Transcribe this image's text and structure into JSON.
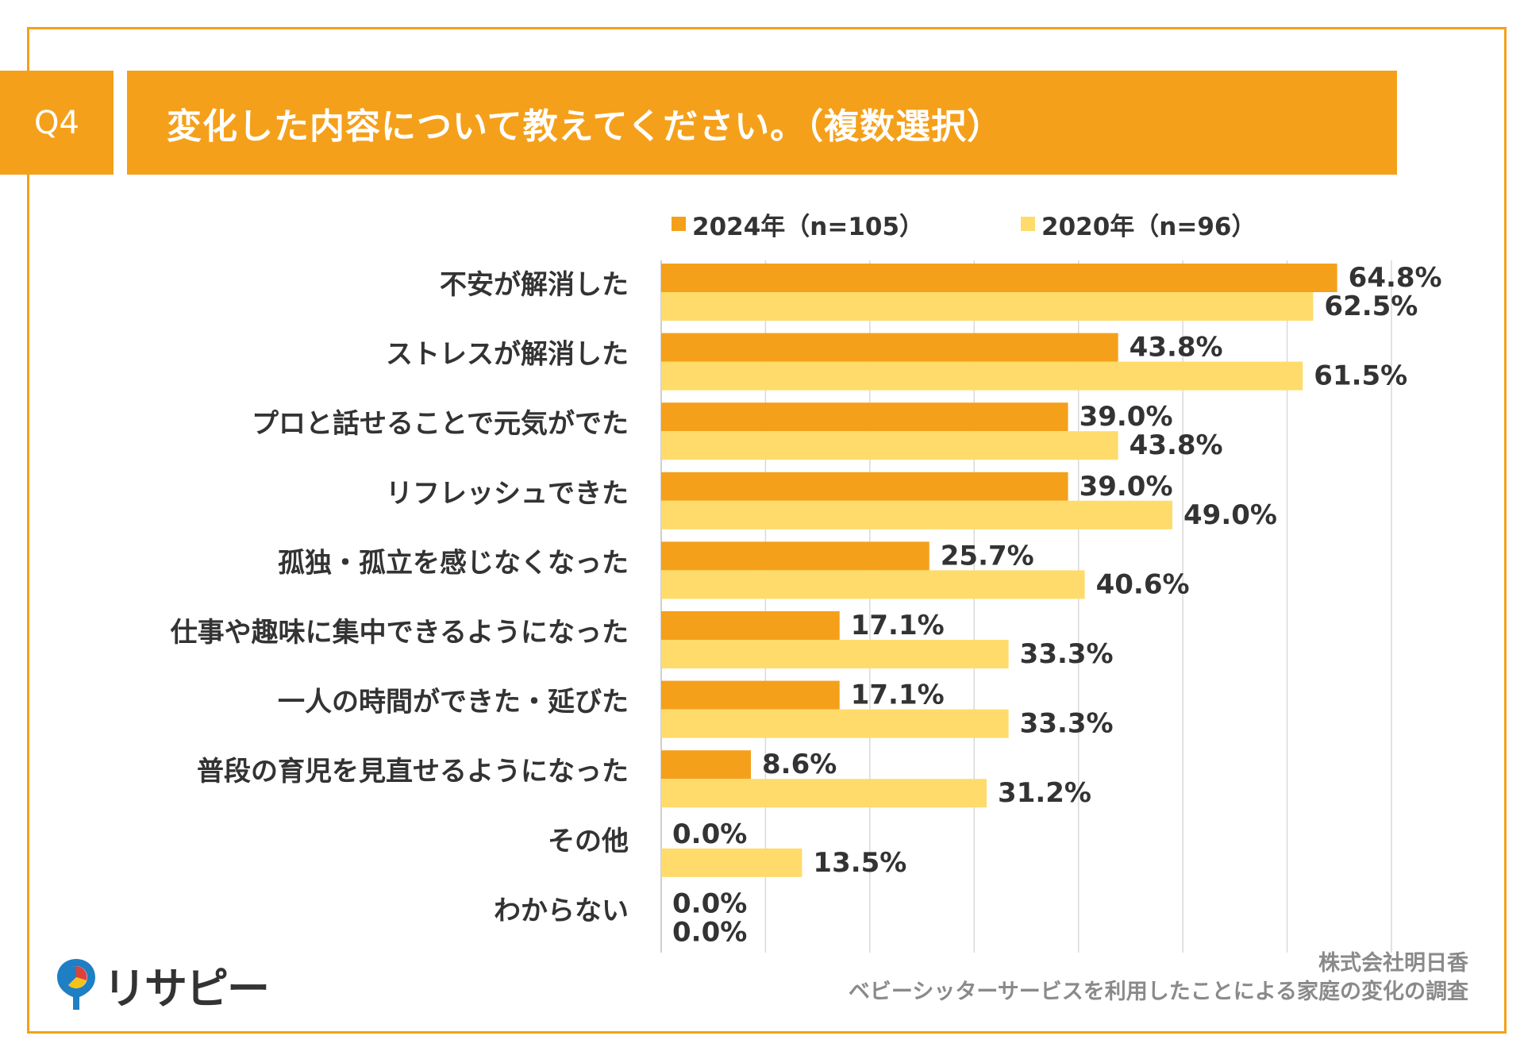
{
  "header": {
    "question_no": "Q4",
    "title": "変化した内容について教えてください。（複数選択）"
  },
  "colors": {
    "accent": "#F5A01A",
    "series_2024": "#F5A01A",
    "series_2020": "#FFDB6C",
    "grid": "#d9d9d9",
    "text": "#333333"
  },
  "chart_data": {
    "type": "bar",
    "orientation": "horizontal",
    "categories": [
      "不安が解消した",
      "ストレスが解消した",
      "プロと話せることで元気がでた",
      "リフレッシュできた",
      "孤独・孤立を感じなくなった",
      "仕事や趣味に集中できるようになった",
      "一人の時間ができた・延びた",
      "普段の育児を見直せるようになった",
      "その他",
      "わからない"
    ],
    "series": [
      {
        "name": "2024年（n=105）",
        "values": [
          64.8,
          43.8,
          39.0,
          39.0,
          25.7,
          17.1,
          17.1,
          8.6,
          0.0,
          0.0
        ],
        "labels": [
          "64.8%",
          "43.8%",
          "39.0%",
          "39.0%",
          "25.7%",
          "17.1%",
          "17.1%",
          "8.6%",
          "0.0%",
          "0.0%"
        ]
      },
      {
        "name": "2020年（n=96）",
        "values": [
          62.5,
          61.5,
          43.8,
          49.0,
          40.6,
          33.3,
          33.3,
          31.2,
          13.5,
          0.0
        ],
        "labels": [
          "62.5%",
          "61.5%",
          "43.8%",
          "49.0%",
          "40.6%",
          "33.3%",
          "33.3%",
          "31.2%",
          "13.5%",
          "0.0%"
        ]
      }
    ],
    "xlim": [
      0,
      70
    ],
    "grid": true,
    "legend_position": "top"
  },
  "footer": {
    "logo_text": "リサピー",
    "source_line1": "株式会社明日香",
    "source_line2": "ベビーシッターサービスを利用したことによる家庭の変化の調査"
  }
}
